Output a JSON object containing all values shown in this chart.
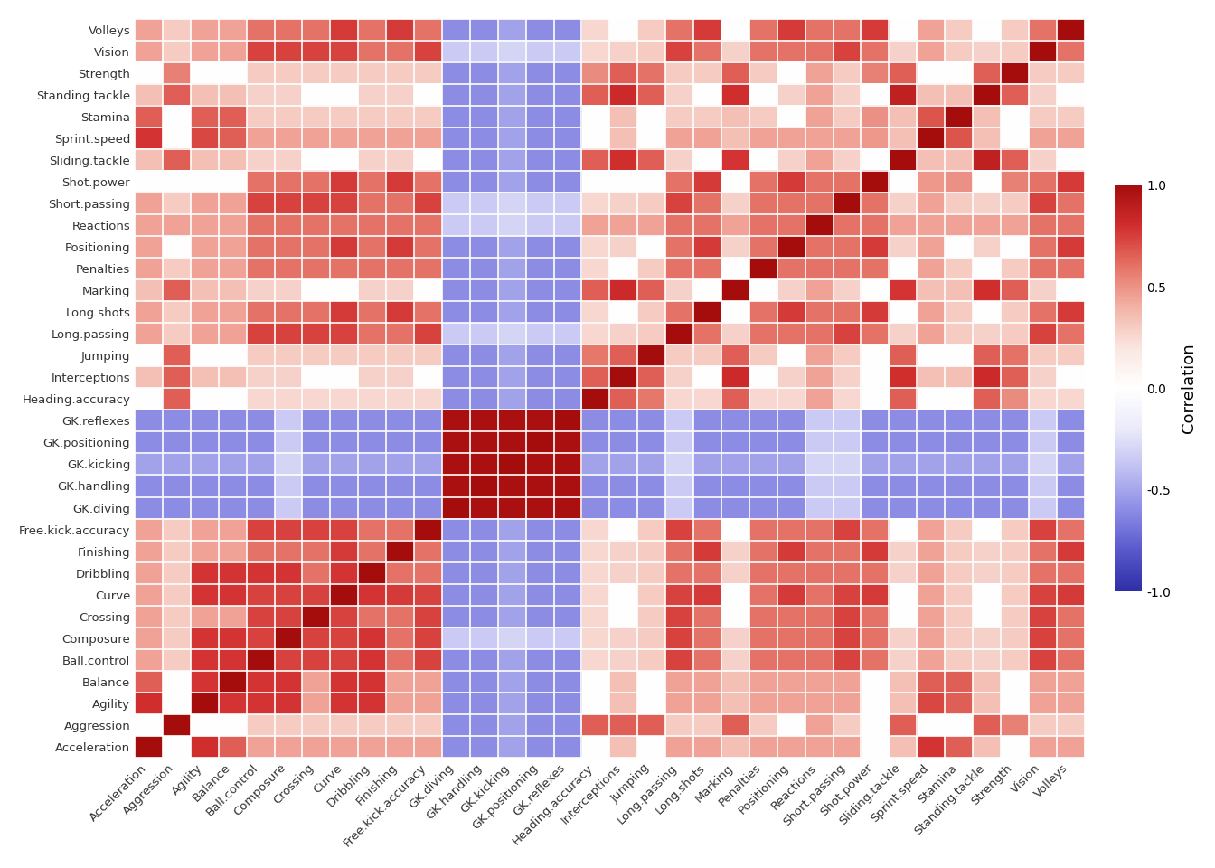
{
  "variables": [
    "Acceleration",
    "Aggression",
    "Agility",
    "Balance",
    "Ball.control",
    "Composure",
    "Crossing",
    "Curve",
    "Dribbling",
    "Finishing",
    "Free.kick.accuracy",
    "GK.diving",
    "GK.handling",
    "GK.kicking",
    "GK.positioning",
    "GK.reflexes",
    "Heading.accuracy",
    "Interceptions",
    "Jumping",
    "Long.passing",
    "Long.shots",
    "Marking",
    "Penalties",
    "Positioning",
    "Reactions",
    "Short.passing",
    "Shot.power",
    "Sliding.tackle",
    "Sprint.speed",
    "Stamina",
    "Standing.tackle",
    "Strength",
    "Vision",
    "Volleys"
  ],
  "title": "Correlation",
  "colorbar_ticks": [
    1.0,
    0.5,
    0.0,
    -0.5,
    -1.0
  ],
  "background_color": "#ffffff",
  "cmap_colors": [
    "#2b2b8f",
    "#4040b0",
    "#6666cc",
    "#9999dd",
    "#ccccee",
    "#ffffff",
    "#eecccc",
    "#dd9999",
    "#cc4444",
    "#bb1111",
    "#8b0000"
  ]
}
